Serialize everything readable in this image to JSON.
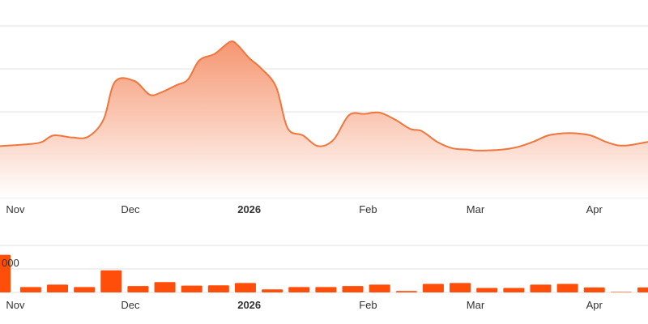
{
  "colors": {
    "line": "#f0763c",
    "area_top": "#f5916a",
    "bar": "#ff4d0a",
    "grid": "#e1e1e1"
  },
  "chart_data": [
    {
      "type": "area",
      "grid": true,
      "xlim": [
        "2025-10-28",
        "2026-04-15"
      ],
      "x_ticks": [
        {
          "date": "2025-11-01",
          "label": "Nov",
          "bold": false
        },
        {
          "date": "2025-12-01",
          "label": "Dec",
          "bold": false
        },
        {
          "date": "2026-01-01",
          "label": "2026",
          "bold": true
        },
        {
          "date": "2026-02-01",
          "label": "Feb",
          "bold": false
        },
        {
          "date": "2026-03-01",
          "label": "Mar",
          "bold": false
        },
        {
          "date": "2026-04-01",
          "label": "Apr",
          "bold": false
        }
      ],
      "ylim": [
        0,
        4
      ],
      "y_gridlines": [
        0,
        1,
        2,
        3,
        4
      ],
      "series": [
        {
          "x": [
            "2025-10-28",
            "2025-11-05",
            "2025-11-08",
            "2025-11-11",
            "2025-11-16",
            "2025-11-20",
            "2025-11-24",
            "2025-11-27",
            "2025-12-02",
            "2025-12-06",
            "2025-12-09",
            "2025-12-13",
            "2025-12-16",
            "2025-12-19",
            "2025-12-23",
            "2025-12-27",
            "2025-12-29",
            "2026-01-01",
            "2026-01-04",
            "2026-01-08",
            "2026-01-11",
            "2026-01-15",
            "2026-01-19",
            "2026-01-23",
            "2026-01-27",
            "2026-01-31",
            "2026-02-04",
            "2026-02-08",
            "2026-02-12",
            "2026-02-15",
            "2026-02-19",
            "2026-02-23",
            "2026-02-27",
            "2026-03-01",
            "2026-03-04",
            "2026-03-08",
            "2026-03-12",
            "2026-03-16",
            "2026-03-20",
            "2026-03-24",
            "2026-03-27",
            "2026-03-31",
            "2026-04-04",
            "2026-04-07",
            "2026-04-10",
            "2026-04-15"
          ],
          "y": [
            1.2,
            1.25,
            1.3,
            1.45,
            1.4,
            1.42,
            1.82,
            2.7,
            2.72,
            2.4,
            2.45,
            2.62,
            2.75,
            3.2,
            3.35,
            3.63,
            3.55,
            3.25,
            3.02,
            2.58,
            1.62,
            1.45,
            1.2,
            1.35,
            1.92,
            1.95,
            1.98,
            1.82,
            1.6,
            1.55,
            1.3,
            1.15,
            1.12,
            1.1,
            1.1,
            1.12,
            1.18,
            1.3,
            1.45,
            1.5,
            1.5,
            1.45,
            1.3,
            1.22,
            1.22,
            1.3
          ]
        }
      ]
    },
    {
      "type": "bar",
      "grid": true,
      "xlim": [
        "2025-10-28",
        "2026-04-15"
      ],
      "x_ticks": [
        {
          "date": "2025-11-01",
          "label": "Nov",
          "bold": false
        },
        {
          "date": "2025-12-01",
          "label": "Dec",
          "bold": false
        },
        {
          "date": "2026-01-01",
          "label": "2026",
          "bold": true
        },
        {
          "date": "2026-02-01",
          "label": "Feb",
          "bold": false
        },
        {
          "date": "2026-03-01",
          "label": "Mar",
          "bold": false
        },
        {
          "date": "2026-04-01",
          "label": "Apr",
          "bold": false
        }
      ],
      "ylim": [
        0,
        2000
      ],
      "y_ticks": [
        {
          "value": 1000,
          "label": "000"
        }
      ],
      "series": [
        {
          "x": [
            "2025-10-28",
            "2025-11-05",
            "2025-11-12",
            "2025-11-19",
            "2025-11-26",
            "2025-12-03",
            "2025-12-10",
            "2025-12-17",
            "2025-12-24",
            "2025-12-31",
            "2026-01-07",
            "2026-01-14",
            "2026-01-21",
            "2026-01-28",
            "2026-02-04",
            "2026-02-11",
            "2026-02-18",
            "2026-02-25",
            "2026-03-04",
            "2026-03-11",
            "2026-03-18",
            "2026-03-25",
            "2026-04-01",
            "2026-04-08",
            "2026-04-15"
          ],
          "values": [
            1600,
            230,
            330,
            230,
            940,
            270,
            440,
            290,
            300,
            400,
            130,
            230,
            230,
            270,
            330,
            60,
            360,
            400,
            190,
            190,
            330,
            360,
            210,
            20,
            210
          ]
        }
      ]
    }
  ]
}
